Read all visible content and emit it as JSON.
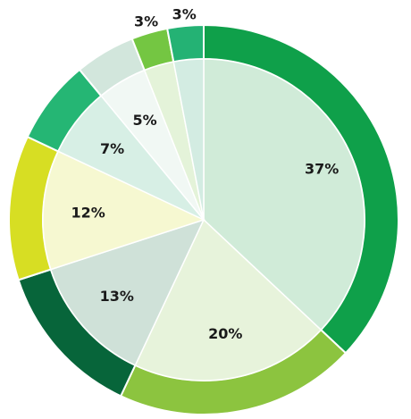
{
  "chart_data": {
    "type": "pie",
    "style": "donut-ring-with-inner-pie",
    "slices": [
      {
        "label": "37%",
        "value": 37,
        "outer_color": "#0fa04a",
        "inner_color": "#d0ebd8"
      },
      {
        "label": "20%",
        "value": 20,
        "outer_color": "#8cc43f",
        "inner_color": "#e7f3db"
      },
      {
        "label": "13%",
        "value": 13,
        "outer_color": "#07653a",
        "inner_color": "#cfe1d8"
      },
      {
        "label": "12%",
        "value": 12,
        "outer_color": "#d7de23",
        "inner_color": "#f6f8d1"
      },
      {
        "label": "7%",
        "value": 7,
        "outer_color": "#25b674",
        "inner_color": "#d7efe5"
      },
      {
        "label": "5%",
        "value": 5,
        "outer_color": "#d2e6dc",
        "inner_color": "#f1f8f4"
      },
      {
        "label": "3%",
        "value": 3,
        "outer_color": "#74c642",
        "inner_color": "#e4f3d9"
      },
      {
        "label": "3%",
        "value": 3,
        "outer_color": "#24b274",
        "inner_color": "#d3ece2"
      }
    ]
  }
}
